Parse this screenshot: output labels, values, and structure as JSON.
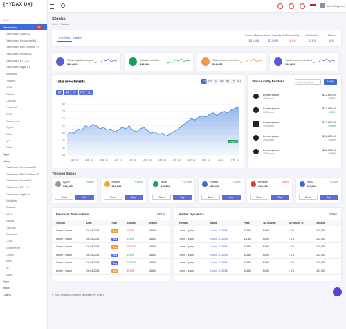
{
  "sidebar": {
    "logo": "[HYDAX UX]",
    "section": "Main",
    "badge": "12",
    "items": [
      "Dashboard",
      "Dashboard Dark V1",
      "Dashboard Horizontal V1",
      "Dashboard Mini Sidebar V1",
      "Dashboard Boxed V1",
      "Dashboard RTL V1",
      "Dashboard Light V1",
      "Analytics",
      "Projects",
      "HRM",
      "Stocks",
      "Courses",
      "Personal",
      "CRM",
      "Ecommerce",
      "Crypto",
      "Jobs",
      "NFT",
      "Sales",
      "Apps",
      "Inbox",
      "Dashboard Horizontal V1",
      "Dashboard Mini Sidebar V1",
      "Dashboard Boxed V1",
      "Dashboard RTL V1",
      "Dashboard Light V1",
      "Analytics",
      "Projects",
      "HRM",
      "Stocks",
      "Courses",
      "Personal",
      "CRM",
      "Ecommerce",
      "Crypto",
      "Jobs",
      "NFT",
      "Sales",
      "Apps",
      "Inbox",
      "Charts"
    ]
  },
  "topbar": {
    "user": "Mark Stephen"
  },
  "header": {
    "title": "Stocks",
    "breadcrumb": [
      "Home",
      "Stocks"
    ]
  },
  "summary": {
    "tabs": [
      "Portfolio",
      "Market"
    ],
    "metrics": [
      {
        "label": "Gross Indicators",
        "value": "$13,698"
      },
      {
        "label": "Market Capitalization",
        "value": "$13,698"
      },
      {
        "label": "Productivity",
        "value": "8.4%"
      },
      {
        "label": "Distribution",
        "value": "37.6%"
      },
      {
        "label": "Others",
        "value": "18%"
      }
    ]
  },
  "stats": [
    {
      "label": "Total capital deployed",
      "value": "$12,456",
      "color": "#5b5bd6"
    },
    {
      "label": "Details portfolio",
      "value": "$12,456",
      "color": "#1a9e5a"
    },
    {
      "label": "Total amount invested",
      "value": "$12,456",
      "color": "#f59a3c"
    },
    {
      "label": "Total amount received",
      "value": "$12,456",
      "color": "#5b5bd6"
    }
  ],
  "chart_data": {
    "type": "area",
    "title": "Total investments",
    "ranges": [
      "1D",
      "1W",
      "1M",
      "3M",
      "6M",
      "1Y",
      "ALL"
    ],
    "periods": [
      "1M",
      "6M",
      "1Y",
      "YTD",
      "ALL"
    ],
    "annotation": "Support",
    "categories": [
      null,
      null,
      "Mar '10",
      null,
      null,
      null,
      "Apr '10",
      null,
      null,
      null,
      "May '10",
      null,
      null,
      null,
      "Jun '10",
      null,
      null,
      null,
      "Jul '10",
      null,
      null,
      null,
      "Aug '10",
      null,
      null,
      null,
      "Sep '10",
      null,
      null,
      null,
      "Oct '10",
      null,
      null,
      null,
      "Nov '10",
      null,
      null,
      null,
      "Dec '10",
      null,
      null,
      null,
      "2011",
      null,
      null,
      null,
      "Feb '11",
      null
    ],
    "values": [
      59,
      61,
      60,
      63,
      62,
      65,
      64,
      66,
      65,
      63,
      64,
      62,
      63,
      61,
      62,
      64,
      63,
      65,
      62,
      61,
      63,
      64,
      62,
      60,
      61,
      59,
      60,
      58,
      59,
      61,
      62,
      64,
      66,
      68,
      70,
      69,
      71,
      72,
      71,
      73,
      74,
      72,
      74,
      75,
      74,
      76,
      77,
      78
    ],
    "color": "#3d7be0",
    "ylim": [
      45,
      80
    ],
    "yticks": [
      45,
      50,
      55,
      60,
      65,
      70,
      75,
      80
    ],
    "grid": true
  },
  "portfolio": {
    "title": "Stocks in My Portfolio",
    "search": "Search by Stock",
    "sort": "Sort By",
    "rows": [
      {
        "name": "Lorem Ipsum",
        "shares": "10 Shares",
        "price": "$12,890.00",
        "change": "+0.56%"
      },
      {
        "name": "Lorem Ipsum",
        "shares": "10 Shares",
        "price": "$12,890.00",
        "change": "+0.56%"
      },
      {
        "name": "Lorem Ipsum",
        "shares": "10 Shares",
        "price": "$12,890.00",
        "change": "+0.56%"
      },
      {
        "name": "Lorem Ipsum",
        "shares": "10 Shares",
        "price": "$12,890.00",
        "change": "+0.56%"
      },
      {
        "name": "Lorem Ipsum",
        "shares": "10 Shares",
        "price": "$12,890.00",
        "change": "+0.56%"
      }
    ]
  },
  "trending": {
    "title": "Trending Stocks",
    "short": "Short",
    "buy": "Buy",
    "items": [
      {
        "name": "Apple",
        "price": "$15,663",
        "change": "+0.56%"
      },
      {
        "name": "Bitcoin",
        "price": "$15,663",
        "change": "+0.56%"
      },
      {
        "name": "Tesla",
        "price": "$15,663",
        "change": "+0.56%"
      },
      {
        "name": "Flipkart",
        "price": "$15,663",
        "change": "+0.56%"
      },
      {
        "name": "Binance",
        "price": "$15,663",
        "change": "-0.56%"
      },
      {
        "name": "Nokia",
        "price": "$15,663",
        "change": "+0.56%"
      }
    ]
  },
  "transactions": {
    "title": "Financial Transactions",
    "view": "View All",
    "headers": [
      "Symbol",
      "Date",
      "Type",
      "Amount",
      "Shares"
    ],
    "rows": [
      [
        "Lorem - Ipsum",
        "16-04-2024",
        "Sell",
        "$5,890",
        "18,800"
      ],
      [
        "Lorem - Ipsum",
        "16-04-2024",
        "Buy",
        "$5,890",
        "18,800"
      ],
      [
        "Lorem - Ipsum",
        "16-04-2024",
        "Sell",
        "$57,276",
        "18,800"
      ],
      [
        "Lorem - Ipsum",
        "16-04-2024",
        "Buy",
        "$5,890",
        "18,800"
      ],
      [
        "Lorem - Ipsum",
        "16-04-2024",
        "Buy",
        "$12,030",
        "18,800"
      ],
      [
        "Lorem - Ipsum",
        "16-04-2024",
        "Sell",
        "$5,890",
        "18,800"
      ]
    ]
  },
  "market": {
    "title": "Market Dynamics",
    "view": "View All",
    "headers": [
      "Symbol",
      "Name",
      "Price",
      "1D Change",
      "1D Return %",
      "Volume"
    ],
    "rows": [
      [
        "Lorem - Ipsum",
        "Lorem - LOREM",
        "$14.60",
        "$4.90",
        "1.4%",
        "143,500"
      ],
      [
        "Lorem - Ipsum",
        "Lorem - LOREM",
        "$11.60",
        "$4.90",
        "1.4%",
        "143,500"
      ],
      [
        "Lorem - Ipsum",
        "Lorem - LOREM",
        "$14.60",
        "$4.90",
        "1.4%",
        "143,500"
      ],
      [
        "Lorem - Ipsum",
        "Lorem - LOREM",
        "$14.60",
        "$4.90",
        "1.4%",
        "143,500"
      ],
      [
        "Lorem - Ipsum",
        "Lorem - LOREM",
        "$14.60",
        "$4.90",
        "1.4%",
        "143,500"
      ],
      [
        "Lorem - Ipsum",
        "Lorem - LOREM",
        "$14.60",
        "$4.90",
        "1.4%",
        "143,500"
      ]
    ]
  },
  "footer": "© 2024 Hydax UX Admin Template by SRBIT"
}
